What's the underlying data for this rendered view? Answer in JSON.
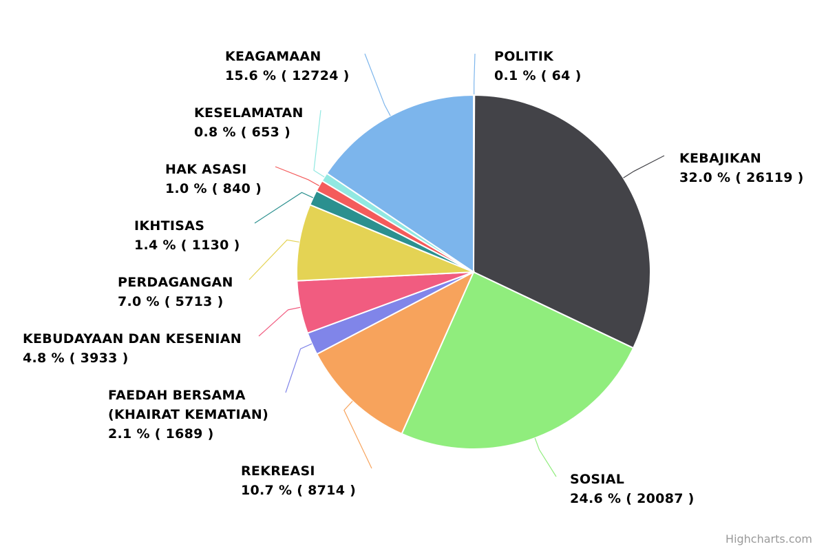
{
  "chart_data": {
    "type": "pie",
    "categories": [
      "POLITIK",
      "KEBAJIKAN",
      "SOSIAL",
      "REKREASI",
      "FAEDAH BERSAMA (KHAIRAT KEMATIAN)",
      "KEBUDAYAAN DAN KESENIAN",
      "PERDAGANGAN",
      "IKHTISAS",
      "HAK ASASI",
      "KESELAMATAN",
      "KEAGAMAAN"
    ],
    "values": [
      64,
      26119,
      20087,
      8714,
      1689,
      3933,
      5713,
      1130,
      840,
      653,
      12724
    ],
    "value_labels": [
      "0.1 % ( 64 )",
      "32.0 % ( 26119 )",
      "24.6 % ( 20087 )",
      "10.7 % ( 8714 )",
      "2.1 % ( 1689 )",
      "4.8 % ( 3933 )",
      "7.0 % ( 5713 )",
      "1.4 % ( 1130 )",
      "1.0 % ( 840 )",
      "0.8 % ( 653 )",
      "15.6 % ( 12724 )"
    ],
    "colors": [
      "#7cb5ec",
      "#434348",
      "#90ed7d",
      "#f7a35c",
      "#8085e9",
      "#f15c80",
      "#e4d354",
      "#2b908f",
      "#f45b5b",
      "#91e8e1",
      "#7cb5ec"
    ],
    "credits": "Highcharts.com"
  }
}
